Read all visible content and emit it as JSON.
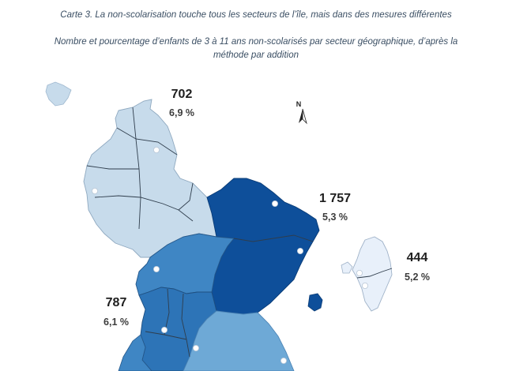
{
  "caption": {
    "title": "Carte 3. La non-scolarisation touche tous les secteurs de l’île, mais dans des mesures différentes",
    "subtitle_line1": "Nombre et pourcentage d’enfants de 3 à 11 ans non-scolarisés par secteur géographique, d’après la",
    "subtitle_line2": "méthode par addition"
  },
  "north_arrow": {
    "letter": "N",
    "icon": "north-arrow-icon"
  },
  "sectors": [
    {
      "id": "north",
      "count": "702",
      "percent": "6,9 %",
      "color": "#c7dbeb"
    },
    {
      "id": "northeast",
      "count": "1 757",
      "percent": "5,3 %",
      "color": "#0e4f9a"
    },
    {
      "id": "petite-terre",
      "count": "444",
      "percent": "5,2 %",
      "color": "#e8f0fa"
    },
    {
      "id": "west",
      "count": "787",
      "percent": "6,1 %",
      "color": "#3f86c4"
    },
    {
      "id": "south-central",
      "color": "#2d74b7"
    },
    {
      "id": "southeast",
      "color": "#6ea9d6"
    }
  ]
}
